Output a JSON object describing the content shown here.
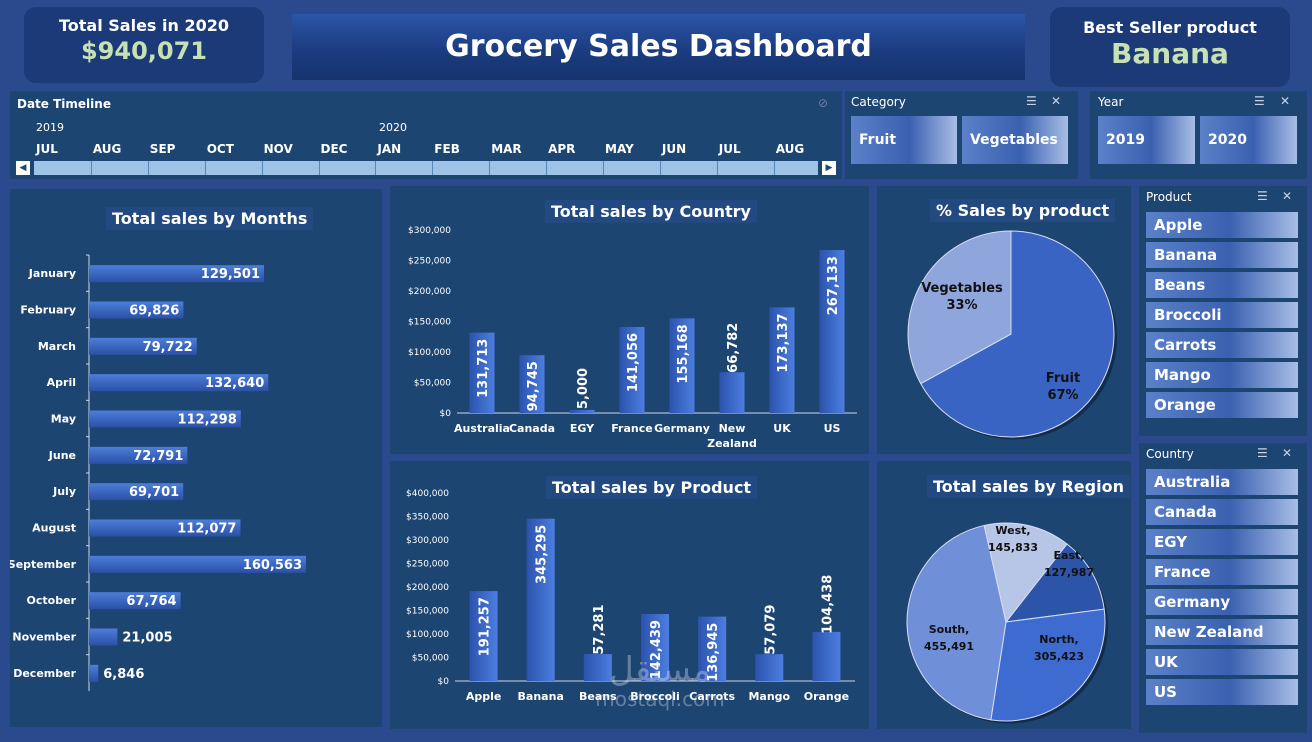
{
  "kpi_total": {
    "label": "Total Sales in 2020",
    "value": "$940,071"
  },
  "dashboard_title": "Grocery Sales Dashboard",
  "kpi_best": {
    "label": "Best Seller product",
    "value": "Banana"
  },
  "timeline": {
    "title": "Date Timeline",
    "years": [
      "2019",
      "2020"
    ],
    "months": [
      "JUL",
      "AUG",
      "SEP",
      "OCT",
      "NOV",
      "DEC",
      "JAN",
      "FEB",
      "MAR",
      "APR",
      "MAY",
      "JUN",
      "JUL",
      "AUG"
    ]
  },
  "category_slicer": {
    "title": "Category",
    "items": [
      "Fruit",
      "Vegetables"
    ]
  },
  "year_slicer": {
    "title": "Year",
    "items": [
      "2019",
      "2020"
    ]
  },
  "product_slicer": {
    "title": "Product",
    "items": [
      "Apple",
      "Banana",
      "Beans",
      "Broccoli",
      "Carrots",
      "Mango",
      "Orange"
    ]
  },
  "country_slicer": {
    "title": "Country",
    "items": [
      "Australia",
      "Canada",
      "EGY",
      "France",
      "Germany",
      "New Zealand",
      "UK",
      "US"
    ]
  },
  "watermark": {
    "brand": "مستقل",
    "url": "mostaql.com"
  },
  "colors": {
    "bar": "#3f6fcf",
    "bar_dark": "#2f55b0",
    "background": "#2b4a8e",
    "panel": "#1d4572",
    "kpi_value": "#c7e0b4"
  },
  "chart_data": [
    {
      "id": "months",
      "type": "bar",
      "orientation": "horizontal",
      "title": "Total sales by Months",
      "categories": [
        "January",
        "February",
        "March",
        "April",
        "May",
        "June",
        "July",
        "August",
        "September",
        "October",
        "November",
        "December"
      ],
      "values": [
        129501,
        69826,
        79722,
        132640,
        112298,
        72791,
        69701,
        112077,
        160563,
        67764,
        21005,
        6846
      ],
      "value_labels": [
        "129,501",
        "69,826",
        "79,722",
        "132,640",
        "112,298",
        "72,791",
        "69,701",
        "112,077",
        "160,563",
        "67,764",
        "21,005",
        "6,846"
      ],
      "xlim": [
        0,
        165000
      ]
    },
    {
      "id": "country",
      "type": "bar",
      "title": "Total sales by Country",
      "categories": [
        "Australia",
        "Canada",
        "EGY",
        "France",
        "Germany",
        "New Zealand",
        "UK",
        "US"
      ],
      "values": [
        131713,
        94745,
        5000,
        141056,
        155168,
        66782,
        173137,
        267133
      ],
      "value_labels": [
        "131,713",
        "94,745",
        "5,000",
        "141,056",
        "155,168",
        "66,782",
        "173,137",
        "267,133"
      ],
      "yticks": [
        "$0",
        "$50,000",
        "$100,000",
        "$150,000",
        "$200,000",
        "$250,000",
        "$300,000"
      ],
      "ylim": [
        0,
        300000
      ]
    },
    {
      "id": "product",
      "type": "bar",
      "title": "Total sales by Product",
      "categories": [
        "Apple",
        "Banana",
        "Beans",
        "Broccoli",
        "Carrots",
        "Mango",
        "Orange"
      ],
      "values": [
        191257,
        345295,
        57281,
        142439,
        136945,
        57079,
        104438
      ],
      "value_labels": [
        "191,257",
        "345,295",
        "57,281",
        "142,439",
        "136,945",
        "57,079",
        "104,438"
      ],
      "yticks": [
        "$0",
        "$50,000",
        "$100,000",
        "$150,000",
        "$200,000",
        "$250,000",
        "$300,000",
        "$350,000",
        "$400,000"
      ],
      "ylim": [
        0,
        400000
      ]
    },
    {
      "id": "pct_product",
      "type": "pie",
      "title": "% Sales by product",
      "labels": [
        "Fruit",
        "Vegetables"
      ],
      "values": [
        67,
        33
      ],
      "value_labels": [
        "67%",
        "33%"
      ],
      "colors": [
        "#3a64c4",
        "#8ea6dc"
      ]
    },
    {
      "id": "region",
      "type": "pie",
      "title": "Total sales by Region",
      "labels": [
        "East",
        "North",
        "South",
        "West"
      ],
      "values": [
        127987,
        305423,
        455491,
        145833
      ],
      "value_labels": [
        "127,987",
        "305,423",
        "455,491",
        "145,833"
      ],
      "colors": [
        "#2c54a8",
        "#3d6bd0",
        "#6f90d8",
        "#b7c6e6"
      ]
    }
  ]
}
